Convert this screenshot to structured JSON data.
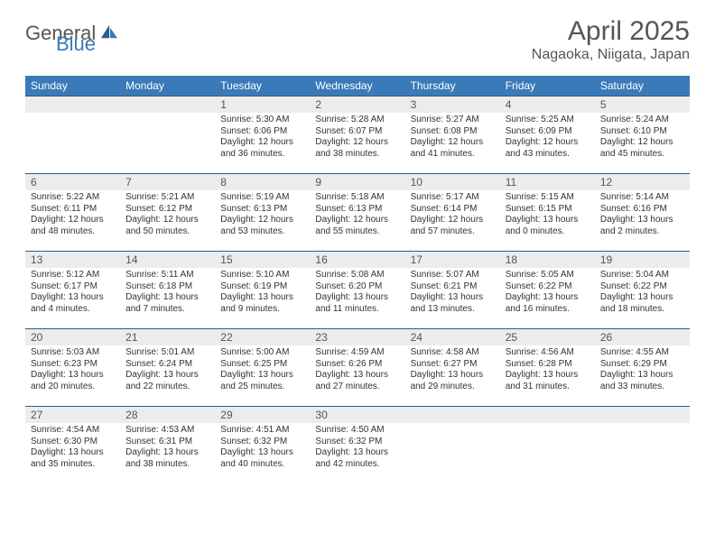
{
  "brand": {
    "part1": "General",
    "part2": "Blue"
  },
  "title": "April 2025",
  "location": "Nagaoka, Niigata, Japan",
  "day_headers": [
    "Sunday",
    "Monday",
    "Tuesday",
    "Wednesday",
    "Thursday",
    "Friday",
    "Saturday"
  ],
  "colors": {
    "header_bg": "#3a7ab8",
    "header_text": "#ffffff",
    "border": "#2a5d8f",
    "daynum_bg": "#ececec",
    "text": "#333333",
    "title_text": "#555555"
  },
  "typography": {
    "title_fontsize": 30,
    "location_fontsize": 16,
    "dayhead_fontsize": 12,
    "daynum_fontsize": 12,
    "body_fontsize": 10
  },
  "weeks": [
    [
      {
        "n": "",
        "sr": "",
        "ss": "",
        "dl1": "",
        "dl2": ""
      },
      {
        "n": "",
        "sr": "",
        "ss": "",
        "dl1": "",
        "dl2": ""
      },
      {
        "n": "1",
        "sr": "Sunrise: 5:30 AM",
        "ss": "Sunset: 6:06 PM",
        "dl1": "Daylight: 12 hours",
        "dl2": "and 36 minutes."
      },
      {
        "n": "2",
        "sr": "Sunrise: 5:28 AM",
        "ss": "Sunset: 6:07 PM",
        "dl1": "Daylight: 12 hours",
        "dl2": "and 38 minutes."
      },
      {
        "n": "3",
        "sr": "Sunrise: 5:27 AM",
        "ss": "Sunset: 6:08 PM",
        "dl1": "Daylight: 12 hours",
        "dl2": "and 41 minutes."
      },
      {
        "n": "4",
        "sr": "Sunrise: 5:25 AM",
        "ss": "Sunset: 6:09 PM",
        "dl1": "Daylight: 12 hours",
        "dl2": "and 43 minutes."
      },
      {
        "n": "5",
        "sr": "Sunrise: 5:24 AM",
        "ss": "Sunset: 6:10 PM",
        "dl1": "Daylight: 12 hours",
        "dl2": "and 45 minutes."
      }
    ],
    [
      {
        "n": "6",
        "sr": "Sunrise: 5:22 AM",
        "ss": "Sunset: 6:11 PM",
        "dl1": "Daylight: 12 hours",
        "dl2": "and 48 minutes."
      },
      {
        "n": "7",
        "sr": "Sunrise: 5:21 AM",
        "ss": "Sunset: 6:12 PM",
        "dl1": "Daylight: 12 hours",
        "dl2": "and 50 minutes."
      },
      {
        "n": "8",
        "sr": "Sunrise: 5:19 AM",
        "ss": "Sunset: 6:13 PM",
        "dl1": "Daylight: 12 hours",
        "dl2": "and 53 minutes."
      },
      {
        "n": "9",
        "sr": "Sunrise: 5:18 AM",
        "ss": "Sunset: 6:13 PM",
        "dl1": "Daylight: 12 hours",
        "dl2": "and 55 minutes."
      },
      {
        "n": "10",
        "sr": "Sunrise: 5:17 AM",
        "ss": "Sunset: 6:14 PM",
        "dl1": "Daylight: 12 hours",
        "dl2": "and 57 minutes."
      },
      {
        "n": "11",
        "sr": "Sunrise: 5:15 AM",
        "ss": "Sunset: 6:15 PM",
        "dl1": "Daylight: 13 hours",
        "dl2": "and 0 minutes."
      },
      {
        "n": "12",
        "sr": "Sunrise: 5:14 AM",
        "ss": "Sunset: 6:16 PM",
        "dl1": "Daylight: 13 hours",
        "dl2": "and 2 minutes."
      }
    ],
    [
      {
        "n": "13",
        "sr": "Sunrise: 5:12 AM",
        "ss": "Sunset: 6:17 PM",
        "dl1": "Daylight: 13 hours",
        "dl2": "and 4 minutes."
      },
      {
        "n": "14",
        "sr": "Sunrise: 5:11 AM",
        "ss": "Sunset: 6:18 PM",
        "dl1": "Daylight: 13 hours",
        "dl2": "and 7 minutes."
      },
      {
        "n": "15",
        "sr": "Sunrise: 5:10 AM",
        "ss": "Sunset: 6:19 PM",
        "dl1": "Daylight: 13 hours",
        "dl2": "and 9 minutes."
      },
      {
        "n": "16",
        "sr": "Sunrise: 5:08 AM",
        "ss": "Sunset: 6:20 PM",
        "dl1": "Daylight: 13 hours",
        "dl2": "and 11 minutes."
      },
      {
        "n": "17",
        "sr": "Sunrise: 5:07 AM",
        "ss": "Sunset: 6:21 PM",
        "dl1": "Daylight: 13 hours",
        "dl2": "and 13 minutes."
      },
      {
        "n": "18",
        "sr": "Sunrise: 5:05 AM",
        "ss": "Sunset: 6:22 PM",
        "dl1": "Daylight: 13 hours",
        "dl2": "and 16 minutes."
      },
      {
        "n": "19",
        "sr": "Sunrise: 5:04 AM",
        "ss": "Sunset: 6:22 PM",
        "dl1": "Daylight: 13 hours",
        "dl2": "and 18 minutes."
      }
    ],
    [
      {
        "n": "20",
        "sr": "Sunrise: 5:03 AM",
        "ss": "Sunset: 6:23 PM",
        "dl1": "Daylight: 13 hours",
        "dl2": "and 20 minutes."
      },
      {
        "n": "21",
        "sr": "Sunrise: 5:01 AM",
        "ss": "Sunset: 6:24 PM",
        "dl1": "Daylight: 13 hours",
        "dl2": "and 22 minutes."
      },
      {
        "n": "22",
        "sr": "Sunrise: 5:00 AM",
        "ss": "Sunset: 6:25 PM",
        "dl1": "Daylight: 13 hours",
        "dl2": "and 25 minutes."
      },
      {
        "n": "23",
        "sr": "Sunrise: 4:59 AM",
        "ss": "Sunset: 6:26 PM",
        "dl1": "Daylight: 13 hours",
        "dl2": "and 27 minutes."
      },
      {
        "n": "24",
        "sr": "Sunrise: 4:58 AM",
        "ss": "Sunset: 6:27 PM",
        "dl1": "Daylight: 13 hours",
        "dl2": "and 29 minutes."
      },
      {
        "n": "25",
        "sr": "Sunrise: 4:56 AM",
        "ss": "Sunset: 6:28 PM",
        "dl1": "Daylight: 13 hours",
        "dl2": "and 31 minutes."
      },
      {
        "n": "26",
        "sr": "Sunrise: 4:55 AM",
        "ss": "Sunset: 6:29 PM",
        "dl1": "Daylight: 13 hours",
        "dl2": "and 33 minutes."
      }
    ],
    [
      {
        "n": "27",
        "sr": "Sunrise: 4:54 AM",
        "ss": "Sunset: 6:30 PM",
        "dl1": "Daylight: 13 hours",
        "dl2": "and 35 minutes."
      },
      {
        "n": "28",
        "sr": "Sunrise: 4:53 AM",
        "ss": "Sunset: 6:31 PM",
        "dl1": "Daylight: 13 hours",
        "dl2": "and 38 minutes."
      },
      {
        "n": "29",
        "sr": "Sunrise: 4:51 AM",
        "ss": "Sunset: 6:32 PM",
        "dl1": "Daylight: 13 hours",
        "dl2": "and 40 minutes."
      },
      {
        "n": "30",
        "sr": "Sunrise: 4:50 AM",
        "ss": "Sunset: 6:32 PM",
        "dl1": "Daylight: 13 hours",
        "dl2": "and 42 minutes."
      },
      {
        "n": "",
        "sr": "",
        "ss": "",
        "dl1": "",
        "dl2": ""
      },
      {
        "n": "",
        "sr": "",
        "ss": "",
        "dl1": "",
        "dl2": ""
      },
      {
        "n": "",
        "sr": "",
        "ss": "",
        "dl1": "",
        "dl2": ""
      }
    ]
  ]
}
